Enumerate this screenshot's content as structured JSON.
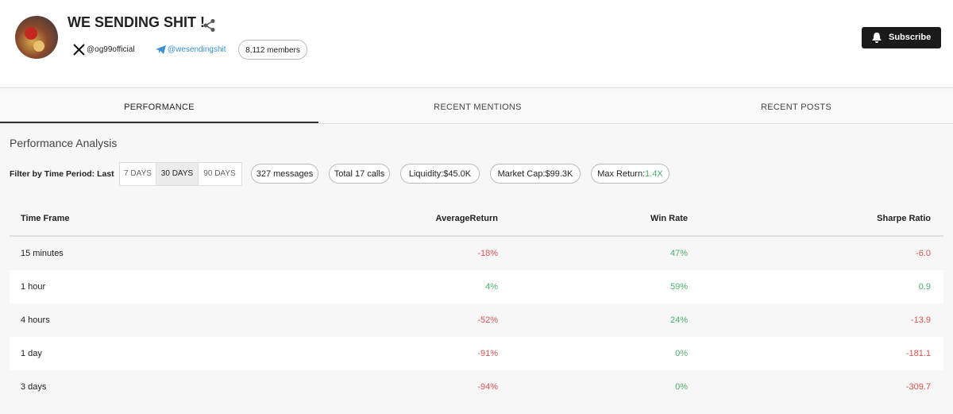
{
  "header": {
    "title": "WE SENDING SHIT !",
    "x_handle": "@og99official",
    "telegram_handle": "@wesendingshit",
    "members": "8,112 members",
    "subscribe": "Subscribe"
  },
  "tabs": [
    "PERFORMANCE",
    "RECENT MENTIONS",
    "RECENT POSTS"
  ],
  "section_title": "Performance Analysis",
  "filter": {
    "label": "Filter by Time Period: Last",
    "periods": [
      "7 DAYS",
      "30 DAYS",
      "90 DAYS"
    ],
    "selected": "30 DAYS"
  },
  "chips": {
    "messages": "327 messages",
    "calls": "Total 17 calls",
    "liquidity": "Liquidity:$45.0K",
    "market_cap": "Market Cap:$99.3K",
    "max_return_label": "Max Return:",
    "max_return_value": "1.4X"
  },
  "table": {
    "columns": [
      "Time Frame",
      "AverageReturn",
      "Win Rate",
      "Sharpe Ratio"
    ],
    "rows": [
      [
        "15 minutes",
        "-18%",
        "47%",
        "-6.0"
      ],
      [
        "1 hour",
        "4%",
        "59%",
        "0.9"
      ],
      [
        "4 hours",
        "-52%",
        "24%",
        "-13.9"
      ],
      [
        "1 day",
        "-91%",
        "0%",
        "-181.1"
      ],
      [
        "3 days",
        "-94%",
        "0%",
        "-309.7"
      ]
    ]
  }
}
